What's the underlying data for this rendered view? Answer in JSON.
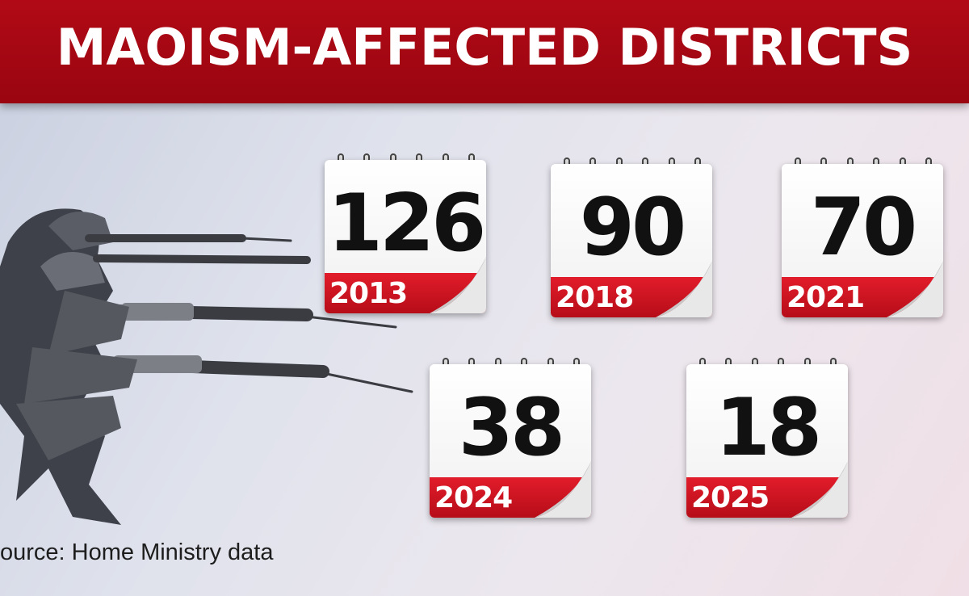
{
  "header": {
    "title": "MAOISM-AFFECTED DISTRICTS"
  },
  "calendars": [
    {
      "number": "126",
      "year": "2013"
    },
    {
      "number": "90",
      "year": "2018"
    },
    {
      "number": "70",
      "year": "2021"
    },
    {
      "number": "38",
      "year": "2024"
    },
    {
      "number": "18",
      "year": "2025"
    }
  ],
  "source": "ource: Home Ministry data",
  "colors": {
    "header_red": "#a80814",
    "band_red": "#d41522"
  }
}
